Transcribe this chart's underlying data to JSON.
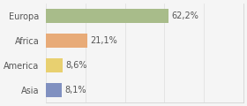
{
  "categories": [
    "Europa",
    "Africa",
    "America",
    "Asia"
  ],
  "values": [
    62.2,
    21.1,
    8.6,
    8.1
  ],
  "labels": [
    "62,2%",
    "21,1%",
    "8,6%",
    "8,1%"
  ],
  "bar_colors": [
    "#a8bc8a",
    "#e8ab78",
    "#e8d070",
    "#8090c0"
  ],
  "background_color": "#f5f5f5",
  "xlim": [
    0,
    100
  ],
  "bar_height": 0.55,
  "label_fontsize": 7,
  "category_fontsize": 7,
  "text_color": "#555555"
}
